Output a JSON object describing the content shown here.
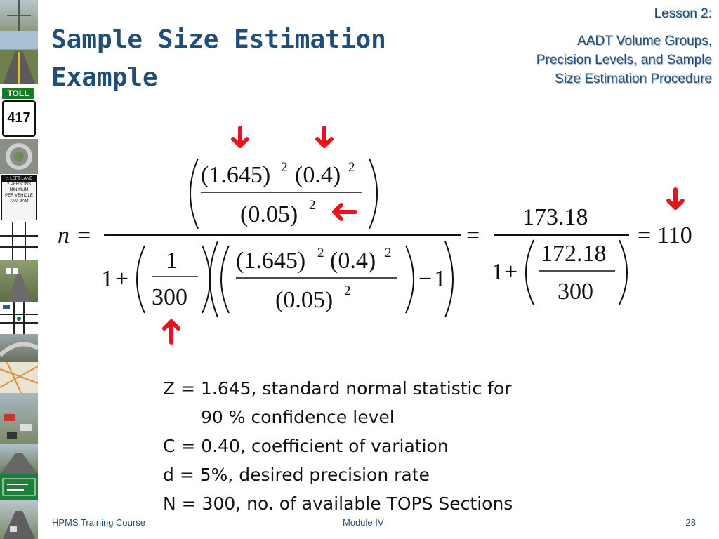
{
  "title": {
    "line1": "Sample Size Estimation",
    "line2": "Example"
  },
  "lesson": {
    "label": "Lesson 2:",
    "line1": "AADT Volume Groups,",
    "line2": "Precision Levels, and Sample",
    "line3": "Size Estimation Procedure"
  },
  "formula": {
    "n": "n",
    "eq": "=",
    "plus": "+",
    "minus": "−",
    "one": "1",
    "z": "(1.645)",
    "c": "(0.4)",
    "d": "(0.05)",
    "exp": "2",
    "N": "300",
    "num_result": "173.18",
    "den_result": "172.18",
    "result": "110"
  },
  "notes": [
    "Z = 1.645, standard normal statistic for",
    "90 % confidence level",
    "C = 0.40, coefficient of variation",
    "d = 5%, desired precision rate",
    "N = 300,  no. of available TOPS Sections"
  ],
  "footer": {
    "course": "HPMS Training Course",
    "module": "Module IV",
    "page": "28"
  },
  "colors": {
    "title": "#1f4e79",
    "arrow": "#e8141b",
    "text": "#111111"
  }
}
